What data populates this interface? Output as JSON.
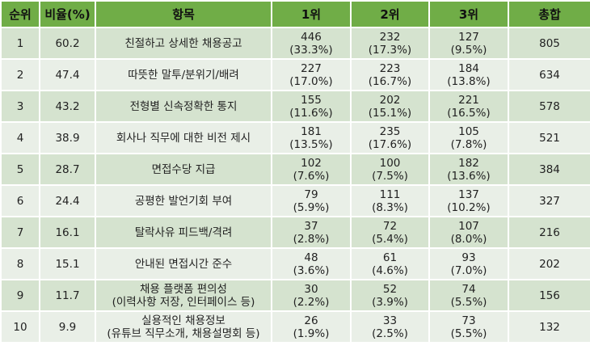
{
  "colors": {
    "header": "#70AD47",
    "row_odd": "#D5E3CF",
    "row_even": "#E9EFE7"
  },
  "headers": [
    "순위",
    "비율(%)",
    "항목",
    "1위",
    "2위",
    "3위",
    "총합"
  ],
  "rows": [
    {
      "rank": "1",
      "ratio": "60.2",
      "item": [
        "친절하고 상세한 채용공고"
      ],
      "first": [
        "446",
        "(33.3%)"
      ],
      "second": [
        "232",
        "(17.3%)"
      ],
      "third": [
        "127",
        "(9.5%)"
      ],
      "total": "805"
    },
    {
      "rank": "2",
      "ratio": "47.4",
      "item": [
        "따뜻한 말투/분위기/배려"
      ],
      "first": [
        "227",
        "(17.0%)"
      ],
      "second": [
        "223",
        "(16.7%)"
      ],
      "third": [
        "184",
        "(13.8%)"
      ],
      "total": "634"
    },
    {
      "rank": "3",
      "ratio": "43.2",
      "item": [
        "전형별 신속정확한 통지"
      ],
      "first": [
        "155",
        "(11.6%)"
      ],
      "second": [
        "202",
        "(15.1%)"
      ],
      "third": [
        "221",
        "(16.5%)"
      ],
      "total": "578"
    },
    {
      "rank": "4",
      "ratio": "38.9",
      "item": [
        "회사나 직무에 대한 비전 제시"
      ],
      "first": [
        "181",
        "(13.5%)"
      ],
      "second": [
        "235",
        "(17.6%)"
      ],
      "third": [
        "105",
        "(7.8%)"
      ],
      "total": "521"
    },
    {
      "rank": "5",
      "ratio": "28.7",
      "item": [
        "면접수당 지급"
      ],
      "first": [
        "102",
        "(7.6%)"
      ],
      "second": [
        "100",
        "(7.5%)"
      ],
      "third": [
        "182",
        "(13.6%)"
      ],
      "total": "384"
    },
    {
      "rank": "6",
      "ratio": "24.4",
      "item": [
        "공평한 발언기회 부여"
      ],
      "first": [
        "79",
        "(5.9%)"
      ],
      "second": [
        "111",
        "(8.3%)"
      ],
      "third": [
        "137",
        "(10.2%)"
      ],
      "total": "327"
    },
    {
      "rank": "7",
      "ratio": "16.1",
      "item": [
        "탈락사유 피드백/격려"
      ],
      "first": [
        "37",
        "(2.8%)"
      ],
      "second": [
        "72",
        "(5.4%)"
      ],
      "third": [
        "107",
        "(8.0%)"
      ],
      "total": "216"
    },
    {
      "rank": "8",
      "ratio": "15.1",
      "item": [
        "안내된 면접시간 준수"
      ],
      "first": [
        "48",
        "(3.6%)"
      ],
      "second": [
        "61",
        "(4.6%)"
      ],
      "third": [
        "93",
        "(7.0%)"
      ],
      "total": "202"
    },
    {
      "rank": "9",
      "ratio": "11.7",
      "item": [
        "채용 플랫폼 편의성",
        "(이력사항 저장, 인터페이스 등)"
      ],
      "first": [
        "30",
        "(2.2%)"
      ],
      "second": [
        "52",
        "(3.9%)"
      ],
      "third": [
        "74",
        "(5.5%)"
      ],
      "total": "156"
    },
    {
      "rank": "10",
      "ratio": "9.9",
      "item": [
        "실용적인 채용정보",
        "(유튜브 직무소개, 채용설명회 등)"
      ],
      "first": [
        "26",
        "(1.9%)"
      ],
      "second": [
        "33",
        "(2.5%)"
      ],
      "third": [
        "73",
        "(5.5%)"
      ],
      "total": "132"
    }
  ]
}
